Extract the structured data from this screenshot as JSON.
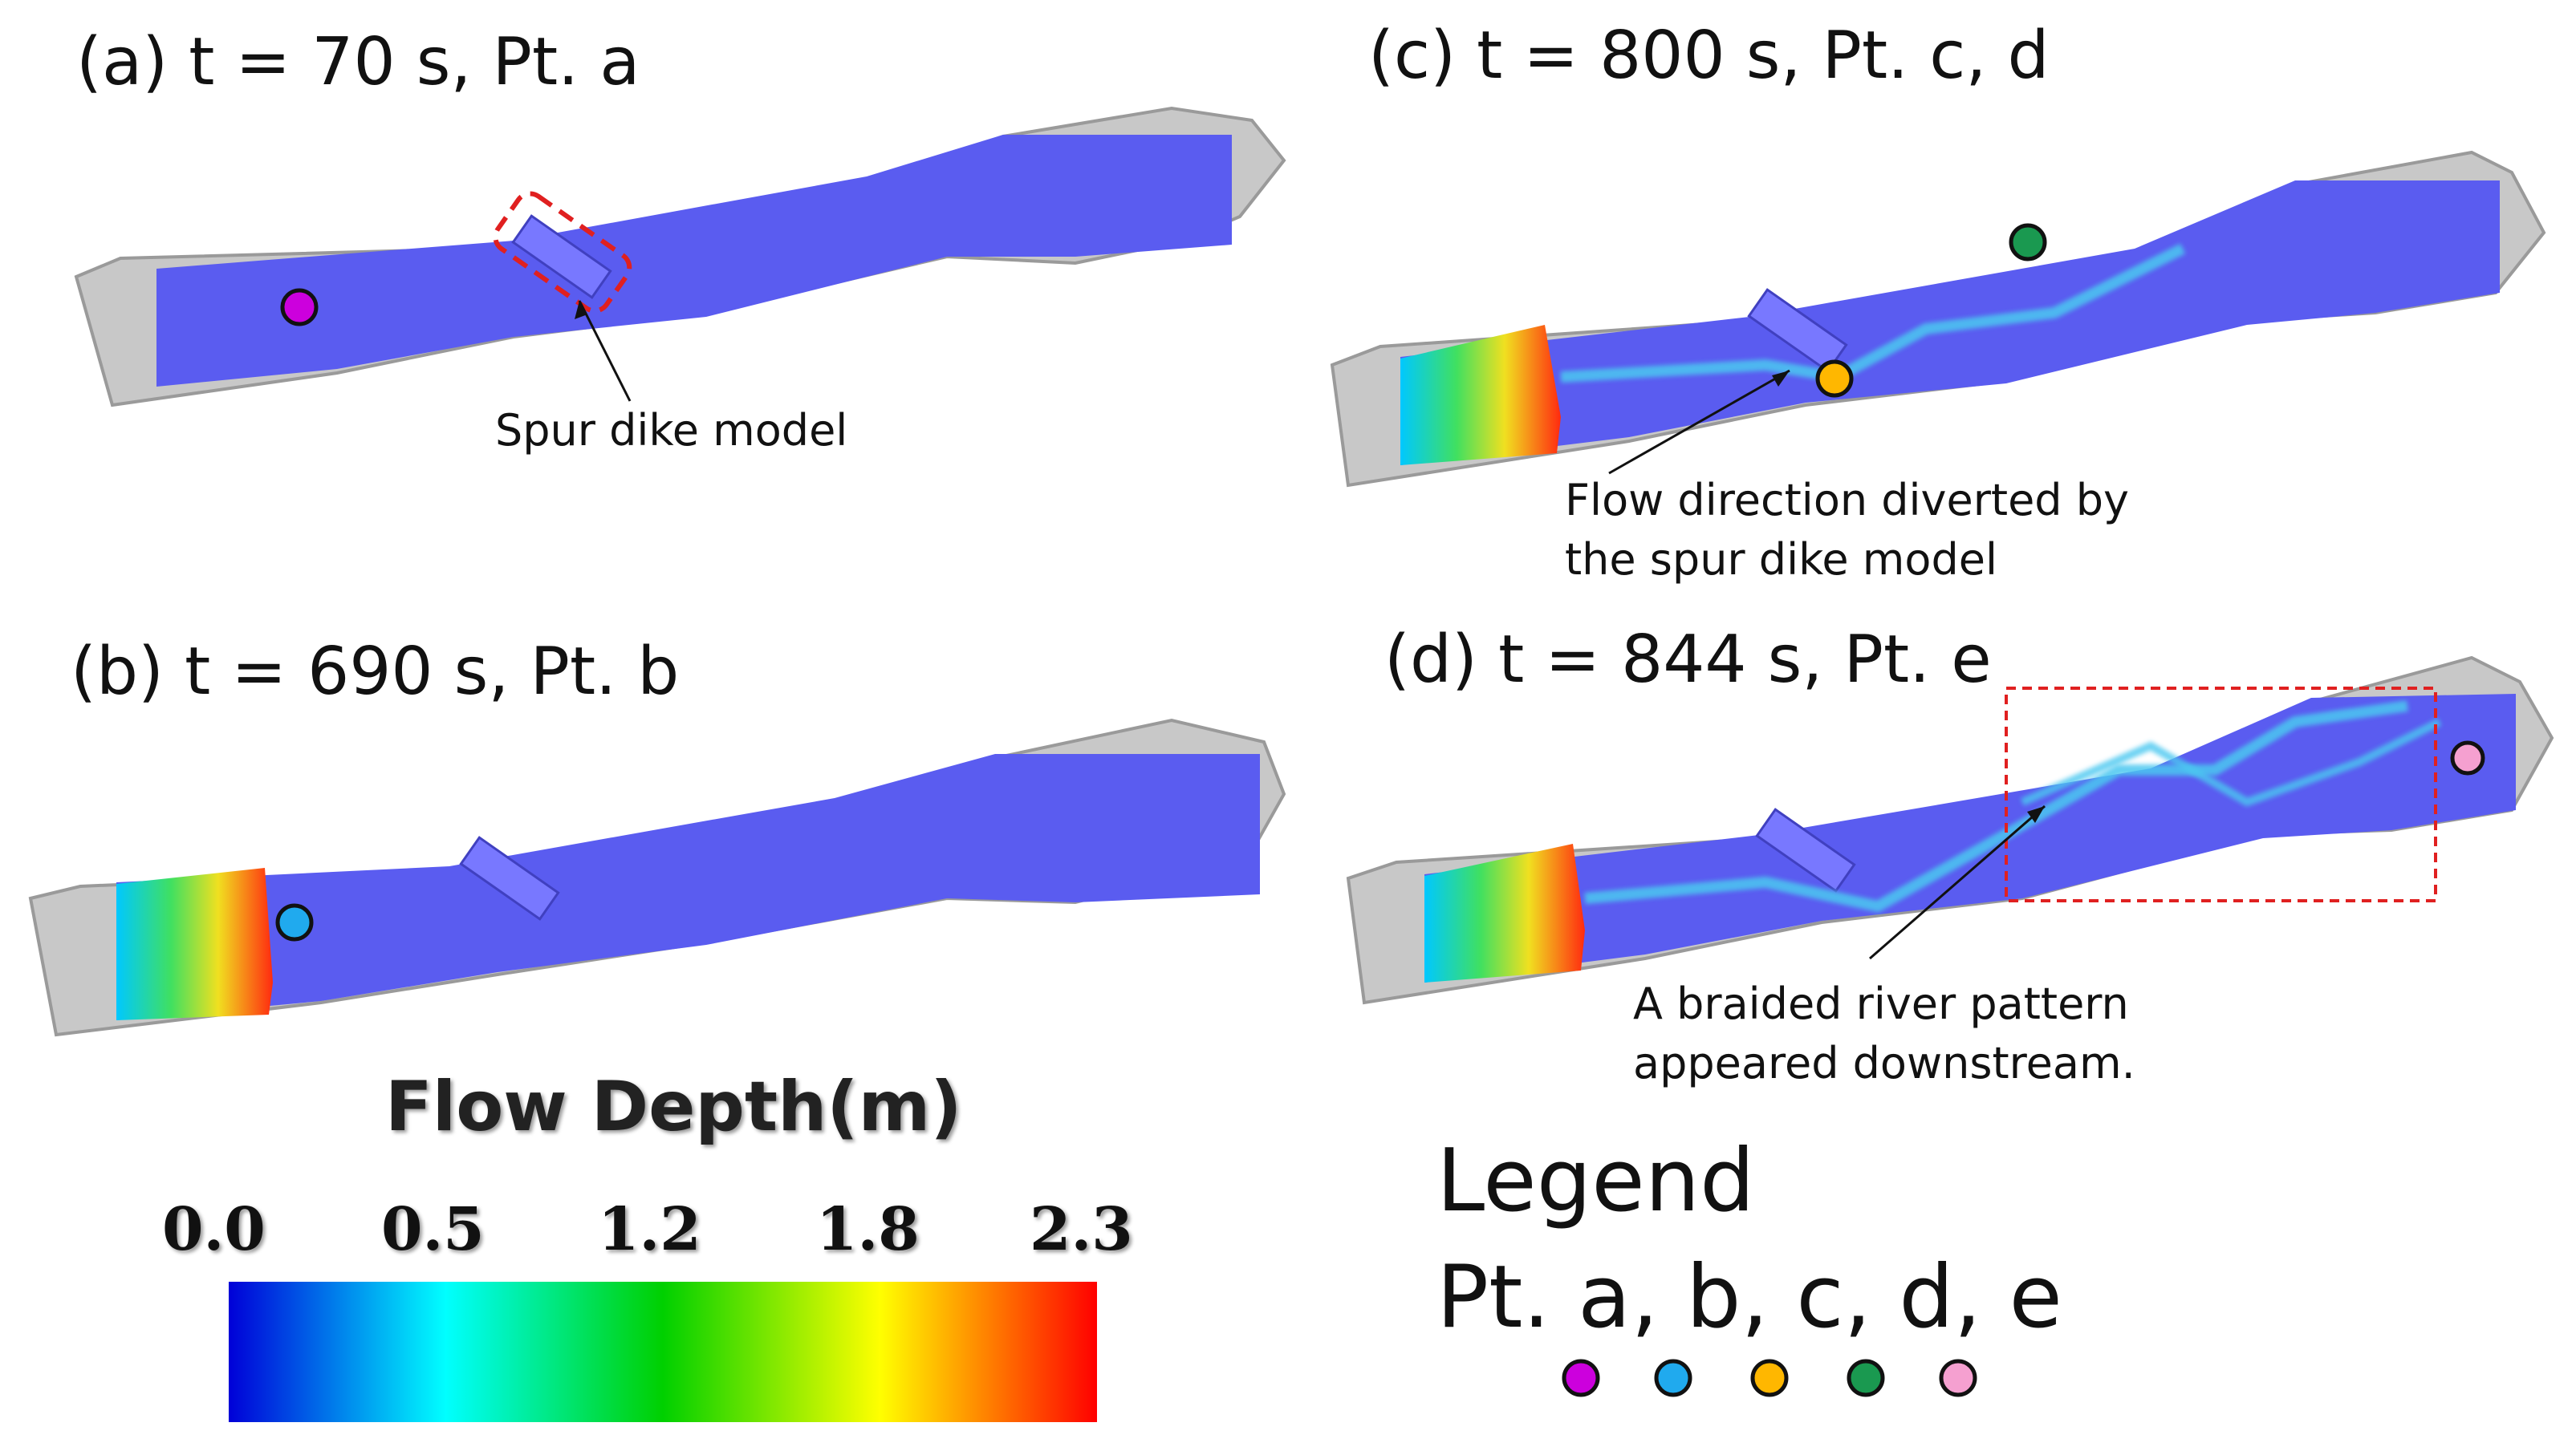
{
  "panels": [
    {
      "id": "a",
      "title": "(a) t = 70 s, Pt. a"
    },
    {
      "id": "b",
      "title": "(b) t = 690 s, Pt. b"
    },
    {
      "id": "c",
      "title": "(c) t = 800 s, Pt. c, d"
    },
    {
      "id": "d",
      "title": "(d) t = 844 s, Pt. e"
    }
  ],
  "annotations": {
    "spur_dike": "Spur dike model",
    "flow_diverted": [
      "Flow direction diverted by",
      "the spur dike model"
    ],
    "braided": [
      "A braided river pattern",
      "appeared downstream."
    ]
  },
  "colorbar": {
    "title": "Flow Depth(m)",
    "ticks": [
      "0.0",
      "0.5",
      "1.2",
      "1.8",
      "2.3"
    ],
    "colors": [
      "#0000d8",
      "#00ffff",
      "#00d000",
      "#ffff00",
      "#ff0000"
    ]
  },
  "legend": {
    "title": "Legend",
    "points_label": "Pt. a, b, c, d, e",
    "markers": [
      {
        "point": "a",
        "color": "#cc00dd"
      },
      {
        "point": "b",
        "color": "#20aaee"
      },
      {
        "point": "c",
        "color": "#ffb700"
      },
      {
        "point": "d",
        "color": "#1a9950"
      },
      {
        "point": "e",
        "color": "#f5a0d0"
      }
    ]
  },
  "colors": {
    "water": "#5a5cf0",
    "terrain": "#c8c8c8",
    "highlight_box": "#e02020"
  }
}
